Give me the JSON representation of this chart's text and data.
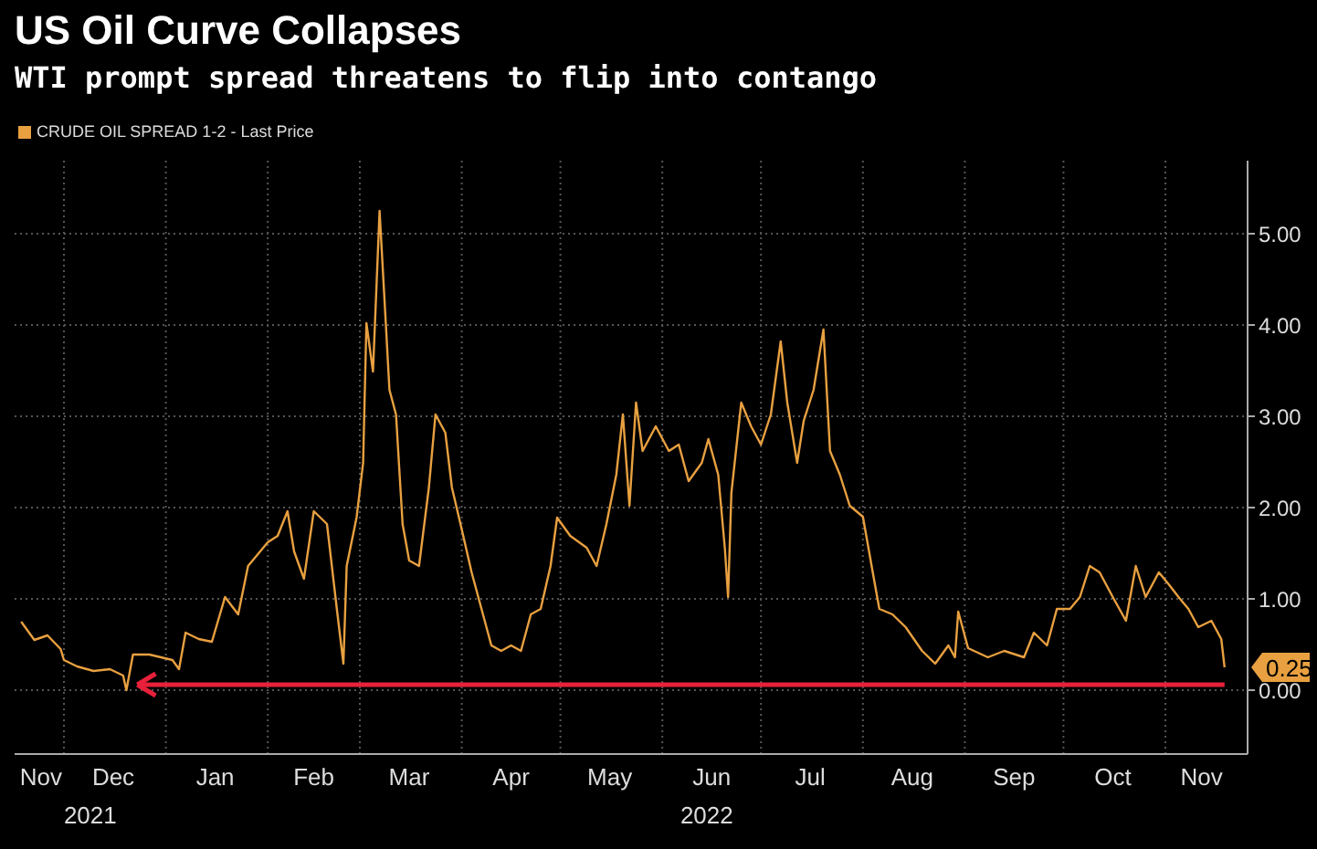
{
  "chart_data": {
    "type": "line",
    "title": "US Oil Curve Collapses",
    "subtitle": "WTI prompt spread threatens to flip into contango",
    "legend": "top left",
    "grid": true,
    "marker": "none",
    "line_style": "solid",
    "xlim": [
      "2021-11-16",
      "2022-11-26"
    ],
    "xticks": [
      {
        "value": "2021-11-24",
        "label": "Nov"
      },
      {
        "value": "2021-12-01",
        "label": null
      },
      {
        "value": "2021-12-16",
        "label": "Dec"
      },
      {
        "value": "2022-01-01",
        "label": null
      },
      {
        "value": "2022-01-16",
        "label": "Jan"
      },
      {
        "value": "2022-02-01",
        "label": null
      },
      {
        "value": "2022-02-15",
        "label": "Feb"
      },
      {
        "value": "2022-03-01",
        "label": null
      },
      {
        "value": "2022-03-16",
        "label": "Mar"
      },
      {
        "value": "2022-04-01",
        "label": null
      },
      {
        "value": "2022-04-16",
        "label": "Apr"
      },
      {
        "value": "2022-05-01",
        "label": null
      },
      {
        "value": "2022-05-16",
        "label": "May"
      },
      {
        "value": "2022-06-01",
        "label": null
      },
      {
        "value": "2022-06-16",
        "label": "Jun"
      },
      {
        "value": "2022-07-01",
        "label": null
      },
      {
        "value": "2022-07-16",
        "label": "Jul"
      },
      {
        "value": "2022-08-01",
        "label": null
      },
      {
        "value": "2022-08-16",
        "label": "Aug"
      },
      {
        "value": "2022-09-01",
        "label": null
      },
      {
        "value": "2022-09-16",
        "label": "Sep"
      },
      {
        "value": "2022-10-01",
        "label": null
      },
      {
        "value": "2022-10-16",
        "label": "Oct"
      },
      {
        "value": "2022-11-01",
        "label": null
      },
      {
        "value": "2022-11-12",
        "label": "Nov"
      }
    ],
    "ylim": [
      -0.7,
      5.8
    ],
    "yticks": [
      {
        "value": 0,
        "label": "0.00"
      },
      {
        "value": 1,
        "label": "1.00"
      },
      {
        "value": 2,
        "label": "2.00"
      },
      {
        "value": 3,
        "label": "3.00"
      },
      {
        "value": 4,
        "label": "4.00"
      },
      {
        "value": 5,
        "label": "5.00"
      }
    ],
    "annotations": [
      "2021",
      "2022",
      {
        "text": "0.25",
        "x": "2022-11-19",
        "y": 0.25
      }
    ],
    "ref_lines": [
      {
        "axis": "y",
        "value": 0.06,
        "color": "#e8203a"
      }
    ],
    "x": [
      "2021-11-18",
      "2021-11-22",
      "2021-11-26",
      "2021-11-30",
      "2021-12-01",
      "2021-12-05",
      "2021-12-10",
      "2021-12-15",
      "2021-12-19",
      "2021-12-20",
      "2021-12-22",
      "2021-12-27",
      "2022-01-03",
      "2022-01-05",
      "2022-01-07",
      "2022-01-11",
      "2022-01-15",
      "2022-01-19",
      "2022-01-23",
      "2022-01-26",
      "2022-02-01",
      "2022-02-04",
      "2022-02-07",
      "2022-02-09",
      "2022-02-12",
      "2022-02-15",
      "2022-02-19",
      "2022-02-22",
      "2022-02-24",
      "2022-02-25",
      "2022-02-28",
      "2022-03-02",
      "2022-03-03",
      "2022-03-05",
      "2022-03-07",
      "2022-03-09",
      "2022-03-10",
      "2022-03-12",
      "2022-03-14",
      "2022-03-16",
      "2022-03-19",
      "2022-03-22",
      "2022-03-24",
      "2022-03-27",
      "2022-03-29",
      "2022-04-01",
      "2022-04-04",
      "2022-04-07",
      "2022-04-10",
      "2022-04-13",
      "2022-04-16",
      "2022-04-19",
      "2022-04-22",
      "2022-04-25",
      "2022-04-28",
      "2022-04-30",
      "2022-05-04",
      "2022-05-09",
      "2022-05-12",
      "2022-05-15",
      "2022-05-18",
      "2022-05-20",
      "2022-05-22",
      "2022-05-24",
      "2022-05-26",
      "2022-05-30",
      "2022-06-03",
      "2022-06-06",
      "2022-06-09",
      "2022-06-13",
      "2022-06-15",
      "2022-06-18",
      "2022-06-20",
      "2022-06-21",
      "2022-06-22",
      "2022-06-25",
      "2022-06-28",
      "2022-07-01",
      "2022-07-04",
      "2022-07-07",
      "2022-07-09",
      "2022-07-12",
      "2022-07-14",
      "2022-07-17",
      "2022-07-20",
      "2022-07-22",
      "2022-07-25",
      "2022-07-28",
      "2022-08-01",
      "2022-08-04",
      "2022-08-06",
      "2022-08-10",
      "2022-08-14",
      "2022-08-19",
      "2022-08-23",
      "2022-08-27",
      "2022-08-29",
      "2022-08-30",
      "2022-09-02",
      "2022-09-08",
      "2022-09-13",
      "2022-09-19",
      "2022-09-22",
      "2022-09-26",
      "2022-09-29",
      "2022-10-03",
      "2022-10-06",
      "2022-10-09",
      "2022-10-12",
      "2022-10-16",
      "2022-10-20",
      "2022-10-23",
      "2022-10-26",
      "2022-10-30",
      "2022-11-02",
      "2022-11-05",
      "2022-11-08",
      "2022-11-11",
      "2022-11-15",
      "2022-11-18",
      "2022-11-19"
    ],
    "series": [
      {
        "name": "CRUDE OIL SPREAD 1-2 - Last Price",
        "color": "#e8a040",
        "values": [
          0.75,
          0.55,
          0.6,
          0.45,
          0.33,
          0.26,
          0.21,
          0.23,
          0.16,
          0.0,
          0.39,
          0.39,
          0.33,
          0.23,
          0.63,
          0.56,
          0.53,
          1.02,
          0.83,
          1.36,
          1.62,
          1.69,
          1.96,
          1.52,
          1.22,
          1.96,
          1.82,
          0.89,
          0.29,
          1.36,
          1.89,
          2.49,
          4.02,
          3.49,
          5.25,
          3.95,
          3.29,
          3.02,
          1.82,
          1.42,
          1.36,
          2.22,
          3.02,
          2.82,
          2.22,
          1.76,
          1.29,
          0.89,
          0.49,
          0.43,
          0.49,
          0.43,
          0.83,
          0.89,
          1.36,
          1.89,
          1.69,
          1.56,
          1.36,
          1.82,
          2.36,
          3.02,
          2.02,
          3.15,
          2.62,
          2.89,
          2.62,
          2.69,
          2.29,
          2.49,
          2.75,
          2.36,
          1.56,
          1.02,
          2.16,
          3.15,
          2.89,
          2.69,
          3.02,
          3.82,
          3.15,
          2.49,
          2.95,
          3.29,
          3.95,
          2.62,
          2.36,
          2.02,
          1.9,
          1.29,
          0.89,
          0.83,
          0.69,
          0.43,
          0.29,
          0.49,
          0.36,
          0.86,
          0.46,
          0.36,
          0.43,
          0.36,
          0.63,
          0.49,
          0.89,
          0.89,
          1.02,
          1.36,
          1.29,
          1.02,
          0.76,
          1.36,
          1.02,
          1.29,
          1.16,
          1.02,
          0.89,
          0.69,
          0.76,
          0.56,
          0.25
        ]
      }
    ]
  }
}
